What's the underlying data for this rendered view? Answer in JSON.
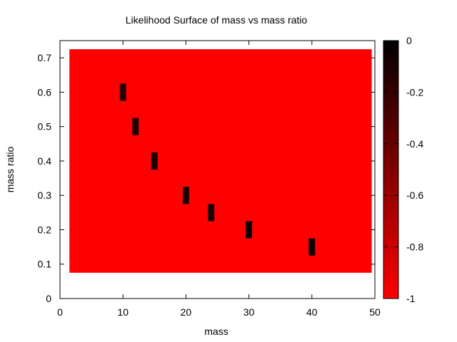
{
  "chart_data": {
    "type": "heatmap",
    "title": "Likelihood Surface of mass vs mass ratio",
    "xlabel": "mass",
    "ylabel": "mass ratio",
    "xlim": [
      0,
      50
    ],
    "ylim": [
      0,
      0.75
    ],
    "xticks": [
      0,
      10,
      20,
      30,
      40,
      50
    ],
    "yticks": [
      0,
      0.1,
      0.2,
      0.3,
      0.4,
      0.5,
      0.6,
      0.7
    ],
    "x_tick_labels": [
      "0",
      "10",
      "20",
      "30",
      "40",
      "50"
    ],
    "y_tick_labels": [
      "0",
      "0.1",
      "0.2",
      "0.3",
      "0.4",
      "0.5",
      "0.6",
      "0.7"
    ],
    "colorbar": {
      "range": [
        -1,
        0
      ],
      "ticks": [
        0,
        -0.2,
        -0.4,
        -0.6,
        -0.8,
        -1
      ],
      "tick_labels": [
        "0",
        "-0.2",
        "-0.4",
        "-0.6",
        "-0.8",
        "-1"
      ],
      "color_low": "#ff0000",
      "color_high": "#000000"
    },
    "background": {
      "x_range": [
        1.5,
        49.5
      ],
      "y_range": [
        0.075,
        0.725
      ],
      "value": -1
    },
    "points": [
      {
        "x": 10,
        "y": 0.6,
        "value": -0.15
      },
      {
        "x": 12,
        "y": 0.5,
        "value": -0.1
      },
      {
        "x": 15,
        "y": 0.4,
        "value": -0.1
      },
      {
        "x": 20,
        "y": 0.3,
        "value": -0.1
      },
      {
        "x": 24,
        "y": 0.25,
        "value": -0.1
      },
      {
        "x": 30,
        "y": 0.2,
        "value": -0.05
      },
      {
        "x": 40,
        "y": 0.15,
        "value": -0.05
      }
    ],
    "cell_size": {
      "dx": 1,
      "dy": 0.05
    },
    "grid": false
  }
}
